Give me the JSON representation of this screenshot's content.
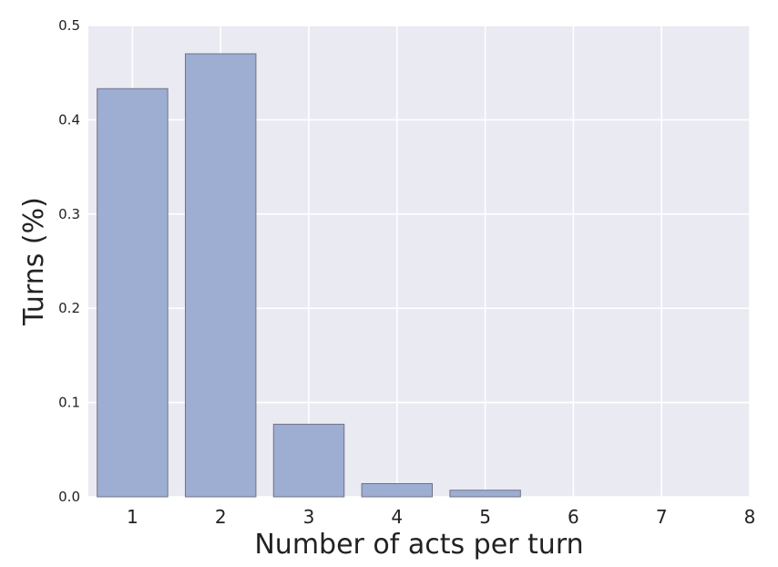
{
  "chart_data": {
    "type": "bar",
    "categories": [
      1,
      2,
      3,
      4,
      5,
      6,
      7,
      8
    ],
    "values": [
      0.433,
      0.47,
      0.077,
      0.014,
      0.007,
      0,
      0,
      0
    ],
    "title": "",
    "xlabel": "Number of acts per turn",
    "ylabel": "Turns (%)",
    "ylim": [
      0,
      0.5
    ],
    "xlim": [
      0.5,
      8
    ],
    "yticks": [
      "0.0",
      "0.1",
      "0.2",
      "0.3",
      "0.4",
      "0.5"
    ],
    "xticks": [
      "1",
      "2",
      "3",
      "4",
      "5",
      "6",
      "7",
      "8"
    ],
    "grid": true,
    "legend": "none",
    "colors": {
      "background": "#EAEAF2",
      "grid": "#FFFFFF",
      "bar_fill": "#9EADD2",
      "bar_edge": "#6E7387"
    }
  }
}
